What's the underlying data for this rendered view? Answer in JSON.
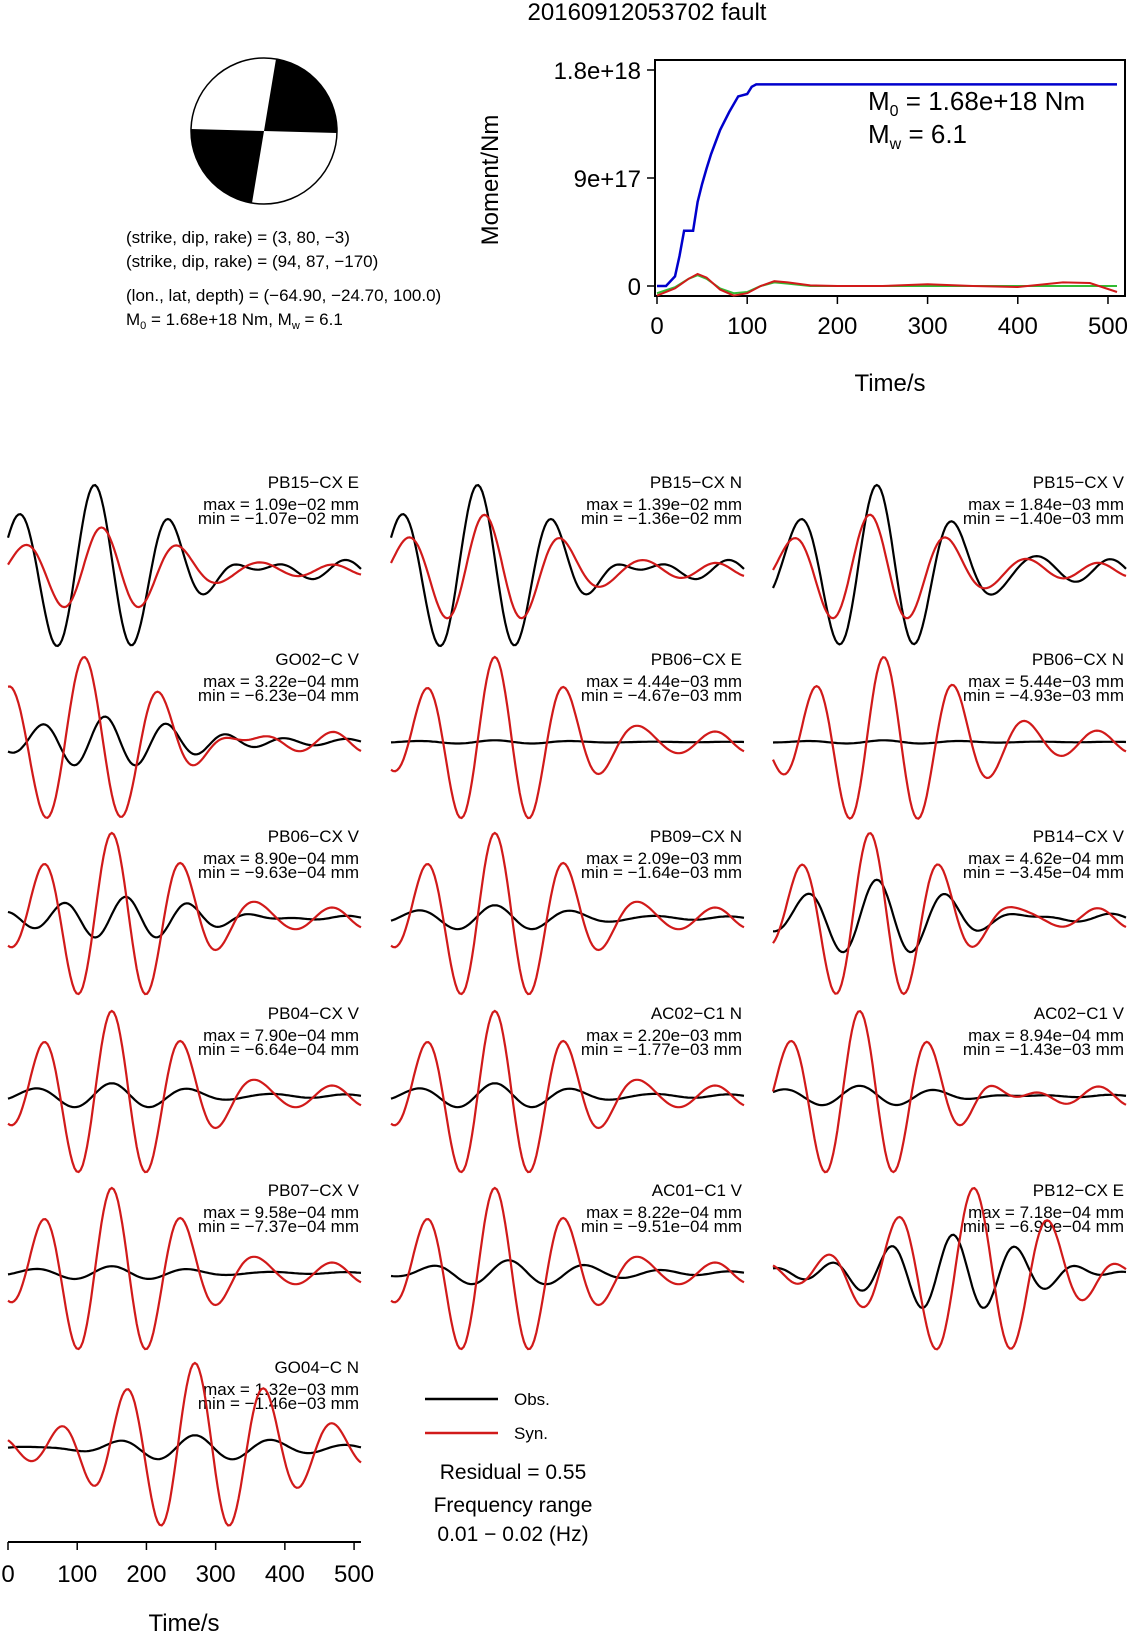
{
  "title": "20160912053702 fault",
  "mechanism": {
    "line1": "(strike, dip, rake) = (3, 80, −3)",
    "line2": "(strike, dip, rake) = (94, 87, −170)",
    "line3": "(lon., lat, depth) = (−64.90, −24.70, 100.0)",
    "m0_prefix": "M",
    "m0_sub": "0",
    "m0_rest": " = 1.68e+18 Nm, M",
    "mw_sub": "w",
    "mw_rest": " = 6.1"
  },
  "chart_data": [
    {
      "type": "line",
      "name": "moment-rate",
      "xlabel": "Time/s",
      "ylabel": "Moment/Nm",
      "xlim": [
        0,
        510
      ],
      "ylim": [
        -1e+17,
        1.8e+18
      ],
      "x_ticks": [
        "0",
        "100",
        "200",
        "300",
        "400",
        "500"
      ],
      "y_ticks": [
        "0",
        "9e+17",
        "1.8e+18"
      ],
      "annotation_m0": {
        "prefix": "M",
        "sub": "0",
        "rest": " = 1.68e+18 Nm"
      },
      "annotation_mw": {
        "prefix": "M",
        "sub": "w",
        "rest": " = 6.1"
      },
      "colors": {
        "cumulative": "#0000cc",
        "rate": "#d11a1a",
        "rate2": "#33bb33"
      },
      "series": [
        {
          "x": [
            0,
            10,
            20,
            25,
            30,
            35,
            40,
            45,
            50,
            55,
            60,
            65,
            70,
            80,
            90,
            100,
            105,
            110,
            510
          ],
          "values": [
            0,
            0,
            8e+16,
            2.5e+17,
            4.6e+17,
            4.6e+17,
            4.6e+17,
            7e+17,
            8.5e+17,
            9.8e+17,
            1.1e+18,
            1.2e+18,
            1.3e+18,
            1.45e+18,
            1.58e+18,
            1.6e+18,
            1.66e+18,
            1.68e+18,
            1.68e+18
          ]
        },
        {
          "x": [
            0,
            20,
            35,
            45,
            55,
            70,
            85,
            100,
            115,
            130,
            145,
            170,
            200,
            250,
            300,
            350,
            400,
            450,
            480,
            510
          ],
          "values": [
            -8e+16,
            -2e+16,
            6e+16,
            1e+17,
            7e+16,
            -3e+16,
            -8e+16,
            -6e+16,
            0,
            4e+16,
            3e+16,
            5000000000000000.0,
            0,
            0,
            1.5e+16,
            0,
            -8000000000000000.0,
            3e+16,
            2.5e+16,
            -5e+16
          ]
        },
        {
          "x": [
            0,
            20,
            35,
            45,
            55,
            70,
            85,
            100,
            115,
            130,
            145,
            170,
            200,
            510
          ],
          "values": [
            -6e+16,
            -1e+16,
            6e+16,
            9e+16,
            6e+16,
            -2e+16,
            -6e+16,
            -5e+16,
            0,
            3e+16,
            2e+16,
            0,
            0,
            0
          ]
        }
      ]
    },
    {
      "type": "line",
      "name": "waveforms",
      "xlabel": "Time/s",
      "x_ticks": [
        "0",
        "100",
        "200",
        "300",
        "400",
        "500"
      ],
      "xlim": [
        0,
        510
      ],
      "legend": {
        "obs": "Obs.",
        "syn": "Syn."
      },
      "residual": "Residual = 0.55",
      "freq_label": "Frequency range",
      "freq_value": "0.01 − 0.02 (Hz)",
      "colors": {
        "obs": "#000000",
        "syn": "#d11a1a"
      },
      "stations": [
        {
          "name": "PB15−CX E",
          "max": "max = 1.09e−02 mm",
          "min": "min = −1.07e−02 mm",
          "obs_amp": 1.0,
          "syn_amp": 0.5,
          "obs_shift": 0,
          "syn_shift": 10,
          "obs_per": 110,
          "syn_per": 110,
          "center": 125
        },
        {
          "name": "PB15−CX N",
          "max": "max = 1.39e−02 mm",
          "min": "min = −1.36e−02 mm",
          "obs_amp": 1.0,
          "syn_amp": 0.65,
          "obs_shift": 0,
          "syn_shift": 10,
          "obs_per": 110,
          "syn_per": 110,
          "center": 125
        },
        {
          "name": "PB15−CX V",
          "max": "max = 1.84e−03 mm",
          "min": "min = −1.40e−03 mm",
          "obs_amp": 1.0,
          "syn_amp": 0.65,
          "obs_shift": 0,
          "syn_shift": -10,
          "obs_per": 110,
          "syn_per": 110,
          "center": 150
        },
        {
          "name": "GO02−C V",
          "max": "max = 3.22e−04 mm",
          "min": "min = −6.23e−04 mm",
          "obs_amp": 0.3,
          "syn_amp": 1.0,
          "obs_shift": 30,
          "syn_shift": 0,
          "obs_per": 90,
          "syn_per": 110,
          "center": 110
        },
        {
          "name": "PB06−CX E",
          "max": "max = 4.44e−03 mm",
          "min": "min = −4.67e−03 mm",
          "obs_amp": 0.02,
          "syn_amp": 1.0,
          "obs_shift": 0,
          "syn_shift": 0,
          "obs_per": 110,
          "syn_per": 100,
          "center": 150
        },
        {
          "name": "PB06−CX N",
          "max": "max = 5.44e−03 mm",
          "min": "min = −4.93e−03 mm",
          "obs_amp": 0.02,
          "syn_amp": 1.0,
          "obs_shift": 0,
          "syn_shift": 0,
          "obs_per": 110,
          "syn_per": 100,
          "center": 160
        },
        {
          "name": "PB06−CX V",
          "max": "max = 8.90e−04 mm",
          "min": "min = −9.63e−04 mm",
          "obs_amp": 0.25,
          "syn_amp": 1.0,
          "obs_shift": 20,
          "syn_shift": 0,
          "obs_per": 90,
          "syn_per": 100,
          "center": 150
        },
        {
          "name": "PB09−CX N",
          "max": "max = 2.09e−03 mm",
          "min": "min = −1.64e−03 mm",
          "obs_amp": 0.15,
          "syn_amp": 1.0,
          "obs_shift": 0,
          "syn_shift": 0,
          "obs_per": 110,
          "syn_per": 100,
          "center": 150
        },
        {
          "name": "PB14−CX V",
          "max": "max = 4.62e−04 mm",
          "min": "min = −3.45e−04 mm",
          "obs_amp": 0.45,
          "syn_amp": 1.0,
          "obs_shift": 10,
          "syn_shift": 0,
          "obs_per": 100,
          "syn_per": 100,
          "center": 140
        },
        {
          "name": "PB04−CX V",
          "max": "max = 7.90e−04 mm",
          "min": "min = −6.64e−04 mm",
          "obs_amp": 0.15,
          "syn_amp": 1.0,
          "obs_shift": 0,
          "syn_shift": 0,
          "obs_per": 110,
          "syn_per": 100,
          "center": 150
        },
        {
          "name": "AC02−C1 N",
          "max": "max = 2.20e−03 mm",
          "min": "min = −1.77e−03 mm",
          "obs_amp": 0.15,
          "syn_amp": 1.0,
          "obs_shift": 0,
          "syn_shift": 0,
          "obs_per": 110,
          "syn_per": 100,
          "center": 150
        },
        {
          "name": "AC02−C1 V",
          "max": "max = 8.94e−04 mm",
          "min": "min = −1.43e−03 mm",
          "obs_amp": 0.12,
          "syn_amp": 1.0,
          "obs_shift": 0,
          "syn_shift": 0,
          "obs_per": 110,
          "syn_per": 100,
          "center": 125
        },
        {
          "name": "PB07−CX V",
          "max": "max = 9.58e−04 mm",
          "min": "min = −7.37e−04 mm",
          "obs_amp": 0.08,
          "syn_amp": 1.0,
          "obs_shift": 0,
          "syn_shift": 0,
          "obs_per": 110,
          "syn_per": 100,
          "center": 150
        },
        {
          "name": "AC01−C1 V",
          "max": "max = 8.22e−04 mm",
          "min": "min = −9.51e−04 mm",
          "obs_amp": 0.15,
          "syn_amp": 1.0,
          "obs_shift": 20,
          "syn_shift": 0,
          "obs_per": 110,
          "syn_per": 100,
          "center": 150
        },
        {
          "name": "PB12−CX E",
          "max": "max = 7.18e−04 mm",
          "min": "min = −6.99e−04 mm",
          "obs_amp": 0.45,
          "syn_amp": 1.0,
          "obs_shift": -30,
          "syn_shift": 0,
          "obs_per": 90,
          "syn_per": 110,
          "center": 290
        },
        {
          "name": "GO04−C N",
          "max": "max = 1.32e−03 mm",
          "min": "min = −1.46e−03 mm",
          "obs_amp": 0.15,
          "syn_amp": 1.0,
          "obs_shift": 0,
          "syn_shift": 0,
          "obs_per": 110,
          "syn_per": 100,
          "center": 270
        }
      ]
    }
  ]
}
